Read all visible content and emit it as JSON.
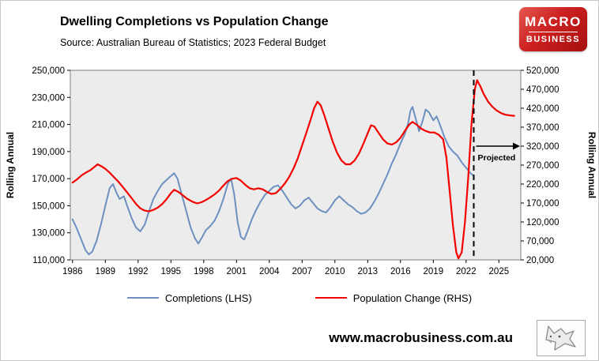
{
  "header": {
    "title": "Dwelling Completions vs Population Change",
    "source": "Source: Australian Bureau of Statistics; 2023 Federal Budget"
  },
  "logo": {
    "line1": "MACRO",
    "line2": "BUSINESS",
    "bg_color": "#c21b17"
  },
  "legend": [
    {
      "label": "Completions (LHS)",
      "color": "#6d90c1"
    },
    {
      "label": "Population Change (RHS)",
      "color": "#f40000"
    }
  ],
  "footer": {
    "url": "www.macrobusiness.com.au"
  },
  "chart_data": {
    "type": "line",
    "title": "Dwelling Completions vs Population Change",
    "subtitle": "Source: Australian Bureau of Statistics; 2023 Federal Budget",
    "plot_bg": "#ececec",
    "grid": false,
    "legend_position": "bottom",
    "x_range": [
      1985.8,
      2027
    ],
    "x_ticks": [
      1986,
      1989,
      1992,
      1995,
      1998,
      2001,
      2004,
      2007,
      2010,
      2013,
      2016,
      2019,
      2022,
      2025
    ],
    "lhs": {
      "label": "Rolling Annual",
      "min": 110000,
      "max": 250000,
      "tick_step": 20000
    },
    "rhs": {
      "label": "Rolling Annual",
      "min": 20000,
      "max": 520000,
      "tick_step": 50000
    },
    "projection": {
      "x": 2022.7,
      "label": "Projected",
      "arrow_y": 320000,
      "label_y": 283000
    },
    "series": [
      {
        "name": "Completions (LHS)",
        "axis": "lhs",
        "color": "#6d90c1",
        "width": 2,
        "points": [
          [
            1986.0,
            140000
          ],
          [
            1986.4,
            133000
          ],
          [
            1986.8,
            125000
          ],
          [
            1987.2,
            117000
          ],
          [
            1987.5,
            114000
          ],
          [
            1987.8,
            116000
          ],
          [
            1988.2,
            124000
          ],
          [
            1988.6,
            136000
          ],
          [
            1989.0,
            150000
          ],
          [
            1989.4,
            163000
          ],
          [
            1989.7,
            166000
          ],
          [
            1990.0,
            160000
          ],
          [
            1990.3,
            155000
          ],
          [
            1990.7,
            157000
          ],
          [
            1991.0,
            150000
          ],
          [
            1991.4,
            141000
          ],
          [
            1991.8,
            134000
          ],
          [
            1992.2,
            131000
          ],
          [
            1992.6,
            136000
          ],
          [
            1993.0,
            146000
          ],
          [
            1993.4,
            155000
          ],
          [
            1993.8,
            161000
          ],
          [
            1994.2,
            166000
          ],
          [
            1994.6,
            169000
          ],
          [
            1995.0,
            172000
          ],
          [
            1995.3,
            174000
          ],
          [
            1995.6,
            170000
          ],
          [
            1996.0,
            158000
          ],
          [
            1996.4,
            146000
          ],
          [
            1996.8,
            134000
          ],
          [
            1997.2,
            126000
          ],
          [
            1997.5,
            122000
          ],
          [
            1997.8,
            126000
          ],
          [
            1998.2,
            132000
          ],
          [
            1998.6,
            135000
          ],
          [
            1999.0,
            139000
          ],
          [
            1999.4,
            146000
          ],
          [
            1999.8,
            155000
          ],
          [
            2000.2,
            166000
          ],
          [
            2000.5,
            170000
          ],
          [
            2000.8,
            158000
          ],
          [
            2001.1,
            138000
          ],
          [
            2001.4,
            127000
          ],
          [
            2001.7,
            125000
          ],
          [
            2002.0,
            131000
          ],
          [
            2002.4,
            140000
          ],
          [
            2002.8,
            147000
          ],
          [
            2003.2,
            153000
          ],
          [
            2003.6,
            158000
          ],
          [
            2004.0,
            161000
          ],
          [
            2004.4,
            164000
          ],
          [
            2004.8,
            165000
          ],
          [
            2005.2,
            161000
          ],
          [
            2005.6,
            156000
          ],
          [
            2006.0,
            151000
          ],
          [
            2006.4,
            148000
          ],
          [
            2006.8,
            150000
          ],
          [
            2007.2,
            154000
          ],
          [
            2007.6,
            156000
          ],
          [
            2008.0,
            152000
          ],
          [
            2008.4,
            148000
          ],
          [
            2008.8,
            146000
          ],
          [
            2009.2,
            145000
          ],
          [
            2009.6,
            149000
          ],
          [
            2010.0,
            154000
          ],
          [
            2010.4,
            157000
          ],
          [
            2010.8,
            154000
          ],
          [
            2011.2,
            151000
          ],
          [
            2011.6,
            149000
          ],
          [
            2012.0,
            146000
          ],
          [
            2012.4,
            144000
          ],
          [
            2012.8,
            145000
          ],
          [
            2013.2,
            148000
          ],
          [
            2013.6,
            153000
          ],
          [
            2014.0,
            159000
          ],
          [
            2014.4,
            166000
          ],
          [
            2014.8,
            173000
          ],
          [
            2015.2,
            181000
          ],
          [
            2015.6,
            188000
          ],
          [
            2016.0,
            196000
          ],
          [
            2016.4,
            203000
          ],
          [
            2016.7,
            211000
          ],
          [
            2016.9,
            220000
          ],
          [
            2017.1,
            223000
          ],
          [
            2017.4,
            214000
          ],
          [
            2017.7,
            205000
          ],
          [
            2018.0,
            212000
          ],
          [
            2018.3,
            221000
          ],
          [
            2018.6,
            219000
          ],
          [
            2019.0,
            213000
          ],
          [
            2019.3,
            216000
          ],
          [
            2019.6,
            210000
          ],
          [
            2020.0,
            201000
          ],
          [
            2020.4,
            194000
          ],
          [
            2020.8,
            190000
          ],
          [
            2021.2,
            187000
          ],
          [
            2021.6,
            182000
          ],
          [
            2022.0,
            178000
          ],
          [
            2022.4,
            174000
          ],
          [
            2022.7,
            172000
          ]
        ]
      },
      {
        "name": "Population Change (RHS)",
        "axis": "rhs",
        "color": "#f40000",
        "width": 2.2,
        "points": [
          [
            1986.0,
            224000
          ],
          [
            1986.4,
            232000
          ],
          [
            1986.8,
            242000
          ],
          [
            1987.2,
            250000
          ],
          [
            1987.6,
            256000
          ],
          [
            1988.0,
            265000
          ],
          [
            1988.3,
            272000
          ],
          [
            1988.7,
            266000
          ],
          [
            1989.0,
            260000
          ],
          [
            1989.4,
            250000
          ],
          [
            1989.8,
            238000
          ],
          [
            1990.2,
            226000
          ],
          [
            1990.6,
            212000
          ],
          [
            1991.0,
            198000
          ],
          [
            1991.4,
            183000
          ],
          [
            1991.8,
            168000
          ],
          [
            1992.2,
            156000
          ],
          [
            1992.6,
            150000
          ],
          [
            1993.0,
            148000
          ],
          [
            1993.4,
            152000
          ],
          [
            1993.8,
            158000
          ],
          [
            1994.2,
            167000
          ],
          [
            1994.6,
            180000
          ],
          [
            1995.0,
            196000
          ],
          [
            1995.3,
            205000
          ],
          [
            1995.7,
            199000
          ],
          [
            1996.1,
            190000
          ],
          [
            1996.5,
            181000
          ],
          [
            1997.0,
            173000
          ],
          [
            1997.4,
            169000
          ],
          [
            1997.8,
            172000
          ],
          [
            1998.2,
            178000
          ],
          [
            1998.6,
            185000
          ],
          [
            1999.0,
            193000
          ],
          [
            1999.4,
            203000
          ],
          [
            1999.8,
            216000
          ],
          [
            2000.2,
            228000
          ],
          [
            2000.6,
            234000
          ],
          [
            2001.0,
            236000
          ],
          [
            2001.4,
            229000
          ],
          [
            2001.8,
            218000
          ],
          [
            2002.2,
            209000
          ],
          [
            2002.6,
            206000
          ],
          [
            2003.0,
            209000
          ],
          [
            2003.4,
            206000
          ],
          [
            2003.8,
            199000
          ],
          [
            2004.2,
            194000
          ],
          [
            2004.6,
            196000
          ],
          [
            2005.0,
            207000
          ],
          [
            2005.4,
            221000
          ],
          [
            2005.8,
            238000
          ],
          [
            2006.2,
            260000
          ],
          [
            2006.6,
            288000
          ],
          [
            2007.0,
            322000
          ],
          [
            2007.4,
            356000
          ],
          [
            2007.8,
            392000
          ],
          [
            2008.1,
            420000
          ],
          [
            2008.4,
            437000
          ],
          [
            2008.7,
            428000
          ],
          [
            2009.0,
            404000
          ],
          [
            2009.4,
            368000
          ],
          [
            2009.8,
            332000
          ],
          [
            2010.2,
            302000
          ],
          [
            2010.6,
            282000
          ],
          [
            2011.0,
            272000
          ],
          [
            2011.4,
            272000
          ],
          [
            2011.8,
            282000
          ],
          [
            2012.2,
            300000
          ],
          [
            2012.6,
            326000
          ],
          [
            2013.0,
            354000
          ],
          [
            2013.3,
            375000
          ],
          [
            2013.6,
            372000
          ],
          [
            2014.0,
            355000
          ],
          [
            2014.4,
            338000
          ],
          [
            2014.8,
            327000
          ],
          [
            2015.2,
            324000
          ],
          [
            2015.6,
            330000
          ],
          [
            2016.0,
            342000
          ],
          [
            2016.4,
            360000
          ],
          [
            2016.8,
            377000
          ],
          [
            2017.1,
            384000
          ],
          [
            2017.5,
            376000
          ],
          [
            2017.9,
            366000
          ],
          [
            2018.3,
            360000
          ],
          [
            2018.7,
            356000
          ],
          [
            2019.1,
            356000
          ],
          [
            2019.5,
            350000
          ],
          [
            2019.9,
            338000
          ],
          [
            2020.2,
            290000
          ],
          [
            2020.5,
            200000
          ],
          [
            2020.8,
            110000
          ],
          [
            2021.1,
            40000
          ],
          [
            2021.3,
            24000
          ],
          [
            2021.6,
            40000
          ],
          [
            2021.9,
            120000
          ],
          [
            2022.2,
            240000
          ],
          [
            2022.5,
            380000
          ],
          [
            2022.8,
            470000
          ],
          [
            2023.0,
            494000
          ],
          [
            2023.3,
            478000
          ],
          [
            2023.6,
            458000
          ],
          [
            2024.0,
            438000
          ],
          [
            2024.4,
            424000
          ],
          [
            2024.8,
            414000
          ],
          [
            2025.2,
            407000
          ],
          [
            2025.6,
            403000
          ],
          [
            2026.0,
            401000
          ],
          [
            2026.4,
            400000
          ]
        ]
      }
    ]
  }
}
